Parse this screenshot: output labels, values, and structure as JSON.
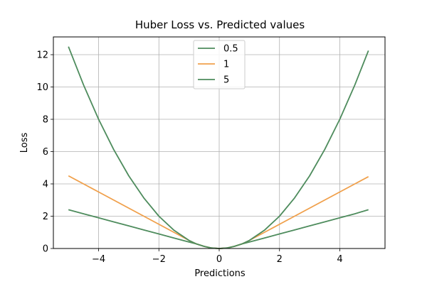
{
  "chart_data": {
    "type": "line",
    "title": "Huber Loss vs. Predicted values",
    "xlabel": "Predictions",
    "ylabel": "Loss",
    "xlim": [
      -5.5,
      5.5
    ],
    "ylim": [
      0,
      13.1
    ],
    "x_ticks": [
      -4,
      -2,
      0,
      2,
      4
    ],
    "x_tick_labels": [
      "−4",
      "−2",
      "0",
      "2",
      "4"
    ],
    "y_ticks": [
      0,
      2,
      4,
      6,
      8,
      10,
      12
    ],
    "y_tick_labels": [
      "0",
      "2",
      "4",
      "6",
      "8",
      "10",
      "12"
    ],
    "grid": true,
    "legend_position": "top-center",
    "x": [
      -5,
      -4.5,
      -4,
      -3.5,
      -3,
      -2.5,
      -2,
      -1.5,
      -1,
      -0.75,
      -0.5,
      -0.25,
      0,
      0.25,
      0.5,
      0.75,
      1,
      1.5,
      2,
      2.5,
      3,
      3.5,
      4,
      4.5,
      4.95
    ],
    "series": [
      {
        "name": "0.5",
        "color": "#4e8c5d",
        "values": [
          2.4,
          2.15,
          1.9,
          1.65,
          1.4,
          1.15,
          0.9,
          0.65,
          0.4,
          0.28,
          0.13,
          0.03,
          0,
          0.03,
          0.13,
          0.28,
          0.4,
          0.65,
          0.9,
          1.15,
          1.4,
          1.65,
          1.9,
          2.15,
          2.4
        ]
      },
      {
        "name": "1",
        "color": "#f0a04b",
        "values": [
          4.5,
          4.0,
          3.5,
          3.0,
          2.5,
          2.0,
          1.5,
          1.0,
          0.5,
          0.28,
          0.13,
          0.03,
          0,
          0.03,
          0.13,
          0.28,
          0.5,
          1.0,
          1.5,
          2.0,
          2.5,
          3.0,
          3.5,
          4.0,
          4.45
        ]
      },
      {
        "name": "5",
        "color": "#4e8c5d",
        "values": [
          12.5,
          10.13,
          8.0,
          6.13,
          4.5,
          3.13,
          2.0,
          1.13,
          0.5,
          0.28,
          0.13,
          0.03,
          0,
          0.03,
          0.13,
          0.28,
          0.5,
          1.13,
          2.0,
          3.13,
          4.5,
          6.13,
          8.0,
          10.13,
          12.25
        ]
      }
    ]
  }
}
